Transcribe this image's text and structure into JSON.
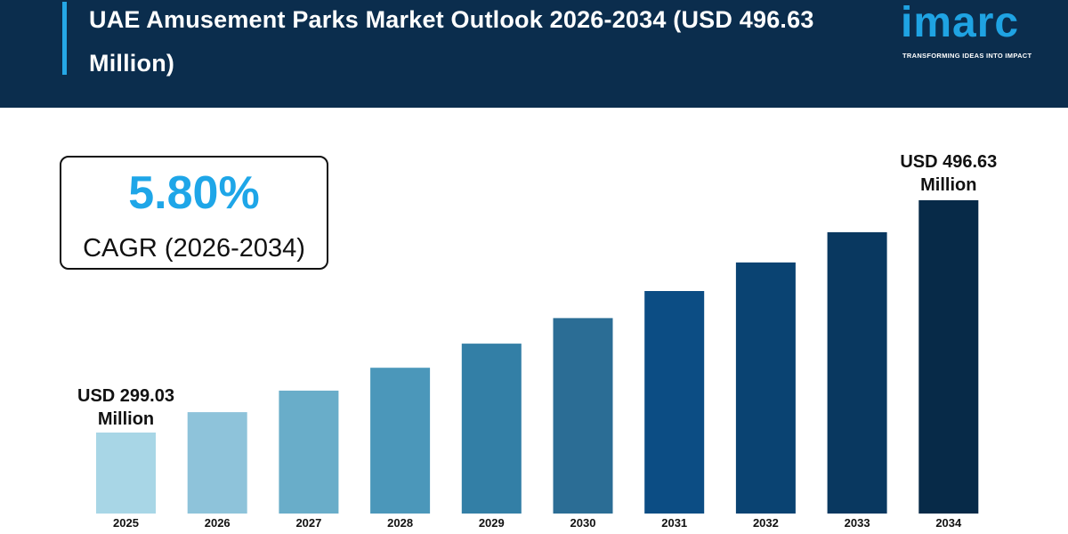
{
  "header": {
    "title": "UAE Amusement Parks Market Outlook 2026-2034 (USD 496.63 Million)"
  },
  "logo": {
    "word": "imarc",
    "tagline": "TRANSFORMING IDEAS INTO IMPACT"
  },
  "cagr": {
    "value": "5.80%",
    "label": "CAGR (2026-2034)"
  },
  "colors": {
    "header_bg": "#0b2d4d",
    "accent": "#1ea6e8",
    "bars": [
      "#a8d6e6",
      "#8ec3da",
      "#69adc9",
      "#4b97ba",
      "#337fa6",
      "#2b6d95",
      "#0c4d84",
      "#0a4372",
      "#093860",
      "#072a48"
    ]
  },
  "chart_data": {
    "type": "bar",
    "categories": [
      "2025",
      "2026",
      "2027",
      "2028",
      "2029",
      "2030",
      "2031",
      "2032",
      "2033",
      "2034"
    ],
    "values": [
      299.03,
      316.37,
      334.72,
      354.13,
      374.67,
      396.4,
      419.39,
      443.72,
      469.46,
      496.63
    ],
    "annotations": {
      "first": {
        "line1": "USD 299.03",
        "line2": "Million"
      },
      "last": {
        "line1": "USD 496.63",
        "line2": "Million"
      }
    }
  }
}
